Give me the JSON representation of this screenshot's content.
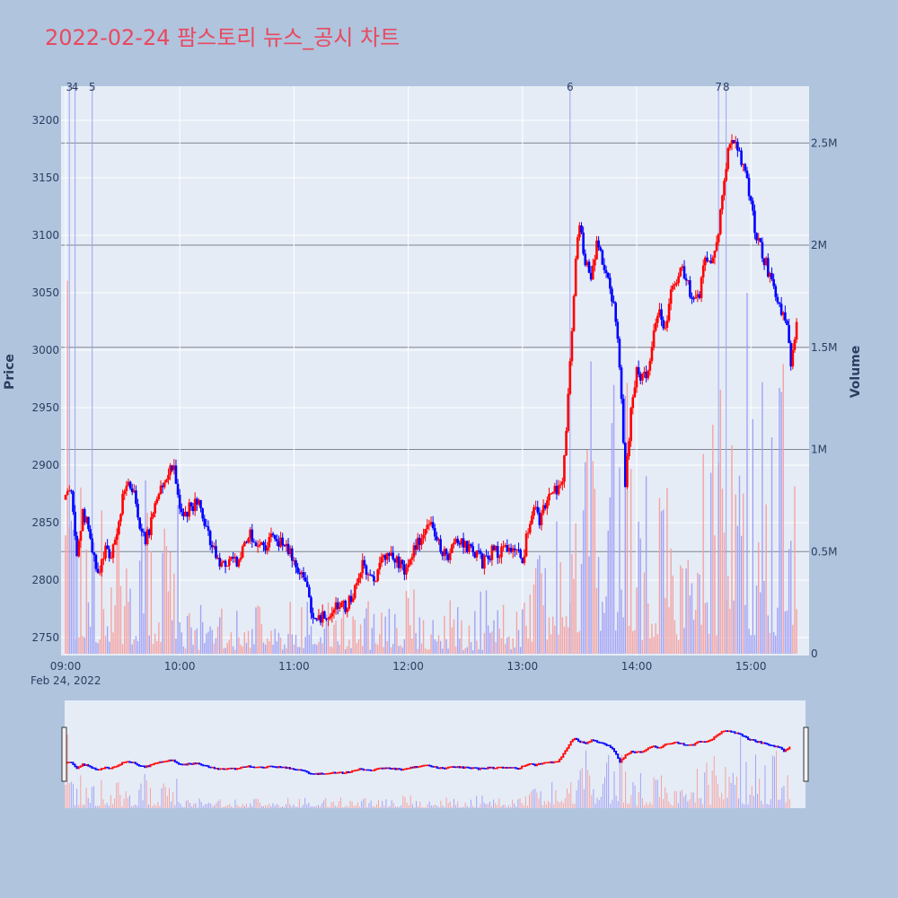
{
  "title": "2022-02-24 팜스토리 뉴스_공시 차트",
  "colors": {
    "page_bg": "#b0c4de",
    "plot_bg": "#e5ecf6",
    "title": "#e8495f",
    "up": "#ff0000",
    "down": "#0000ff",
    "volume_up": "#f4a3a3",
    "volume_down": "#a3a3f4",
    "gridline": "#ffffff",
    "volume_grid": "#7f8591",
    "news_line": "#9aa3f0",
    "text": "#2a3f5f"
  },
  "chart_data": {
    "type": "candlestick",
    "date_label": "Feb 24, 2022",
    "y_axis_title": "Price",
    "y2_axis_title": "Volume",
    "price_ticks": [
      "2750",
      "2800",
      "2850",
      "2900",
      "2950",
      "3000",
      "3050",
      "3100",
      "3150",
      "3200"
    ],
    "volume_ticks": [
      "0",
      "0.5M",
      "1M",
      "1.5M",
      "2M",
      "2.5M"
    ],
    "time_ticks": [
      "09:00",
      "10:00",
      "11:00",
      "12:00",
      "13:00",
      "14:00",
      "15:00"
    ],
    "ylim_price": [
      2735,
      3215
    ],
    "ylim_volume": [
      0,
      2800000
    ],
    "x_range": [
      "09:00",
      "15:30"
    ],
    "grid": true,
    "price_keypoints": [
      [
        "09:00",
        2870
      ],
      [
        "09:03",
        2880
      ],
      [
        "09:06",
        2825
      ],
      [
        "09:09",
        2860
      ],
      [
        "09:12",
        2845
      ],
      [
        "09:15",
        2820
      ],
      [
        "09:18",
        2805
      ],
      [
        "09:21",
        2830
      ],
      [
        "09:24",
        2820
      ],
      [
        "09:27",
        2845
      ],
      [
        "09:30",
        2870
      ],
      [
        "09:33",
        2885
      ],
      [
        "09:36",
        2875
      ],
      [
        "09:39",
        2845
      ],
      [
        "09:42",
        2835
      ],
      [
        "09:45",
        2850
      ],
      [
        "09:48",
        2870
      ],
      [
        "09:51",
        2880
      ],
      [
        "09:54",
        2895
      ],
      [
        "09:57",
        2900
      ],
      [
        "10:00",
        2865
      ],
      [
        "10:03",
        2858
      ],
      [
        "10:06",
        2865
      ],
      [
        "10:09",
        2868
      ],
      [
        "10:12",
        2855
      ],
      [
        "10:15",
        2842
      ],
      [
        "10:18",
        2825
      ],
      [
        "10:21",
        2808
      ],
      [
        "10:24",
        2815
      ],
      [
        "10:27",
        2820
      ],
      [
        "10:30",
        2815
      ],
      [
        "10:33",
        2830
      ],
      [
        "10:36",
        2840
      ],
      [
        "10:39",
        2835
      ],
      [
        "10:42",
        2828
      ],
      [
        "10:45",
        2830
      ],
      [
        "10:48",
        2835
      ],
      [
        "10:51",
        2835
      ],
      [
        "10:54",
        2832
      ],
      [
        "10:57",
        2825
      ],
      [
        "11:00",
        2815
      ],
      [
        "11:03",
        2810
      ],
      [
        "11:06",
        2795
      ],
      [
        "11:09",
        2775
      ],
      [
        "11:12",
        2765
      ],
      [
        "11:15",
        2768
      ],
      [
        "11:18",
        2770
      ],
      [
        "11:21",
        2775
      ],
      [
        "11:24",
        2780
      ],
      [
        "11:27",
        2778
      ],
      [
        "11:30",
        2785
      ],
      [
        "11:33",
        2800
      ],
      [
        "11:36",
        2815
      ],
      [
        "11:39",
        2803
      ],
      [
        "11:42",
        2800
      ],
      [
        "11:45",
        2812
      ],
      [
        "11:48",
        2820
      ],
      [
        "11:51",
        2822
      ],
      [
        "11:54",
        2818
      ],
      [
        "11:57",
        2812
      ],
      [
        "12:00",
        2808
      ],
      [
        "12:03",
        2825
      ],
      [
        "12:06",
        2835
      ],
      [
        "12:09",
        2850
      ],
      [
        "12:12",
        2845
      ],
      [
        "12:15",
        2838
      ],
      [
        "12:18",
        2825
      ],
      [
        "12:21",
        2820
      ],
      [
        "12:24",
        2828
      ],
      [
        "12:27",
        2835
      ],
      [
        "12:30",
        2830
      ],
      [
        "12:33",
        2828
      ],
      [
        "12:36",
        2822
      ],
      [
        "12:39",
        2815
      ],
      [
        "12:42",
        2820
      ],
      [
        "12:45",
        2830
      ],
      [
        "12:48",
        2822
      ],
      [
        "12:51",
        2826
      ],
      [
        "12:54",
        2828
      ],
      [
        "12:57",
        2824
      ],
      [
        "13:00",
        2815
      ],
      [
        "13:03",
        2845
      ],
      [
        "13:06",
        2862
      ],
      [
        "13:09",
        2850
      ],
      [
        "13:12",
        2865
      ],
      [
        "13:15",
        2880
      ],
      [
        "13:18",
        2875
      ],
      [
        "13:21",
        2885
      ],
      [
        "13:24",
        2960
      ],
      [
        "13:26",
        3020
      ],
      [
        "13:28",
        3080
      ],
      [
        "13:30",
        3105
      ],
      [
        "13:33",
        3080
      ],
      [
        "13:36",
        3065
      ],
      [
        "13:39",
        3095
      ],
      [
        "13:42",
        3075
      ],
      [
        "13:45",
        3060
      ],
      [
        "13:48",
        3040
      ],
      [
        "13:51",
        2990
      ],
      [
        "13:54",
        2880
      ],
      [
        "13:57",
        2950
      ],
      [
        "14:00",
        2985
      ],
      [
        "14:03",
        2975
      ],
      [
        "14:06",
        2980
      ],
      [
        "14:09",
        3020
      ],
      [
        "14:12",
        3030
      ],
      [
        "14:15",
        3015
      ],
      [
        "14:18",
        3055
      ],
      [
        "14:21",
        3060
      ],
      [
        "14:24",
        3070
      ],
      [
        "14:27",
        3055
      ],
      [
        "14:30",
        3040
      ],
      [
        "14:33",
        3050
      ],
      [
        "14:36",
        3085
      ],
      [
        "14:39",
        3075
      ],
      [
        "14:42",
        3090
      ],
      [
        "14:45",
        3140
      ],
      [
        "14:48",
        3175
      ],
      [
        "14:51",
        3180
      ],
      [
        "14:54",
        3170
      ],
      [
        "14:57",
        3160
      ],
      [
        "15:00",
        3130
      ],
      [
        "15:03",
        3095
      ],
      [
        "15:06",
        3085
      ],
      [
        "15:09",
        3070
      ],
      [
        "15:12",
        3050
      ],
      [
        "15:15",
        3040
      ],
      [
        "15:18",
        3030
      ],
      [
        "15:21",
        2990
      ],
      [
        "15:24",
        3025
      ]
    ],
    "news_markers": [
      {
        "label": "3",
        "time": "09:02"
      },
      {
        "label": "4",
        "time": "09:05"
      },
      {
        "label": "5",
        "time": "09:14"
      },
      {
        "label": "6",
        "time": "13:25"
      },
      {
        "label": "7",
        "time": "14:43"
      },
      {
        "label": "8",
        "time": "14:47"
      }
    ]
  }
}
